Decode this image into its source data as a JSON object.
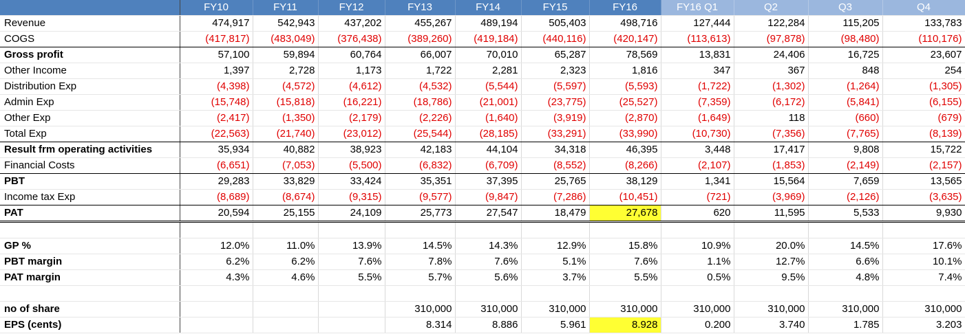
{
  "headers": [
    "FY10",
    "FY11",
    "FY12",
    "FY13",
    "FY14",
    "FY15",
    "FY16",
    "FY16 Q1",
    "Q2",
    "Q3",
    "Q4"
  ],
  "rows": [
    {
      "label": "Revenue",
      "bold": false,
      "values": [
        "474,917",
        "542,943",
        "437,202",
        "455,267",
        "489,194",
        "505,403",
        "498,716",
        "127,444",
        "122,284",
        "115,205",
        "133,783"
      ]
    },
    {
      "label": "COGS",
      "bold": false,
      "values": [
        "(417,817)",
        "(483,049)",
        "(376,438)",
        "(389,260)",
        "(419,184)",
        "(440,116)",
        "(420,147)",
        "(113,613)",
        "(97,878)",
        "(98,480)",
        "(110,176)"
      ]
    },
    {
      "label": "Gross profit",
      "bold": true,
      "values": [
        "57,100",
        "59,894",
        "60,764",
        "66,007",
        "70,010",
        "65,287",
        "78,569",
        "13,831",
        "24,406",
        "16,725",
        "23,607"
      ]
    },
    {
      "label": "Other Income",
      "bold": false,
      "values": [
        "1,397",
        "2,728",
        "1,173",
        "1,722",
        "2,281",
        "2,323",
        "1,816",
        "347",
        "367",
        "848",
        "254"
      ]
    },
    {
      "label": "Distribution Exp",
      "bold": false,
      "values": [
        "(4,398)",
        "(4,572)",
        "(4,612)",
        "(4,532)",
        "(5,544)",
        "(5,597)",
        "(5,593)",
        "(1,722)",
        "(1,302)",
        "(1,264)",
        "(1,305)"
      ]
    },
    {
      "label": "Admin Exp",
      "bold": false,
      "values": [
        "(15,748)",
        "(15,818)",
        "(16,221)",
        "(18,786)",
        "(21,001)",
        "(23,775)",
        "(25,527)",
        "(7,359)",
        "(6,172)",
        "(5,841)",
        "(6,155)"
      ]
    },
    {
      "label": "Other Exp",
      "bold": false,
      "values": [
        "(2,417)",
        "(1,350)",
        "(2,179)",
        "(2,226)",
        "(1,640)",
        "(3,919)",
        "(2,870)",
        "(1,649)",
        "118",
        "(660)",
        "(679)"
      ]
    },
    {
      "label": "Total Exp",
      "bold": false,
      "values": [
        "(22,563)",
        "(21,740)",
        "(23,012)",
        "(25,544)",
        "(28,185)",
        "(33,291)",
        "(33,990)",
        "(10,730)",
        "(7,356)",
        "(7,765)",
        "(8,139)"
      ]
    },
    {
      "label": "Result frm operating activities",
      "bold": true,
      "values": [
        "35,934",
        "40,882",
        "38,923",
        "42,183",
        "44,104",
        "34,318",
        "46,395",
        "3,448",
        "17,417",
        "9,808",
        "15,722"
      ]
    },
    {
      "label": "Financial Costs",
      "bold": false,
      "values": [
        "(6,651)",
        "(7,053)",
        "(5,500)",
        "(6,832)",
        "(6,709)",
        "(8,552)",
        "(8,266)",
        "(2,107)",
        "(1,853)",
        "(2,149)",
        "(2,157)"
      ]
    },
    {
      "label": "PBT",
      "bold": true,
      "values": [
        "29,283",
        "33,829",
        "33,424",
        "35,351",
        "37,395",
        "25,765",
        "38,129",
        "1,341",
        "15,564",
        "7,659",
        "13,565"
      ]
    },
    {
      "label": "Income tax Exp",
      "bold": false,
      "values": [
        "(8,689)",
        "(8,674)",
        "(9,315)",
        "(9,577)",
        "(9,847)",
        "(7,286)",
        "(10,451)",
        "(721)",
        "(3,969)",
        "(2,126)",
        "(3,635)"
      ]
    },
    {
      "label": "PAT",
      "bold": true,
      "values": [
        "20,594",
        "25,155",
        "24,109",
        "25,773",
        "27,547",
        "18,479",
        "27,678",
        "620",
        "11,595",
        "5,533",
        "9,930"
      ]
    }
  ],
  "ratios": [
    {
      "label": "GP %",
      "values": [
        "12.0%",
        "11.0%",
        "13.9%",
        "14.5%",
        "14.3%",
        "12.9%",
        "15.8%",
        "10.9%",
        "20.0%",
        "14.5%",
        "17.6%"
      ]
    },
    {
      "label": "PBT margin",
      "values": [
        "6.2%",
        "6.2%",
        "7.6%",
        "7.8%",
        "7.6%",
        "5.1%",
        "7.6%",
        "1.1%",
        "12.7%",
        "6.6%",
        "10.1%"
      ]
    },
    {
      "label": "PAT margin",
      "values": [
        "4.3%",
        "4.6%",
        "5.5%",
        "5.7%",
        "5.6%",
        "3.7%",
        "5.5%",
        "0.5%",
        "9.5%",
        "4.8%",
        "7.4%"
      ]
    }
  ],
  "shares": [
    {
      "label": "no of share",
      "values": [
        "",
        "",
        "",
        "310,000",
        "310,000",
        "310,000",
        "310,000",
        "310,000",
        "310,000",
        "310,000",
        "310,000"
      ]
    },
    {
      "label": "EPS (cents)",
      "values": [
        "",
        "",
        "",
        "8.314",
        "8.886",
        "5.961",
        "8.928",
        "0.200",
        "3.740",
        "1.785",
        "3.203"
      ]
    }
  ],
  "colors": {
    "header_bg": "#4f81bd",
    "quarter_header_bg": "#9bb7de",
    "negative": "#e00000",
    "highlight": "#ffff33"
  }
}
